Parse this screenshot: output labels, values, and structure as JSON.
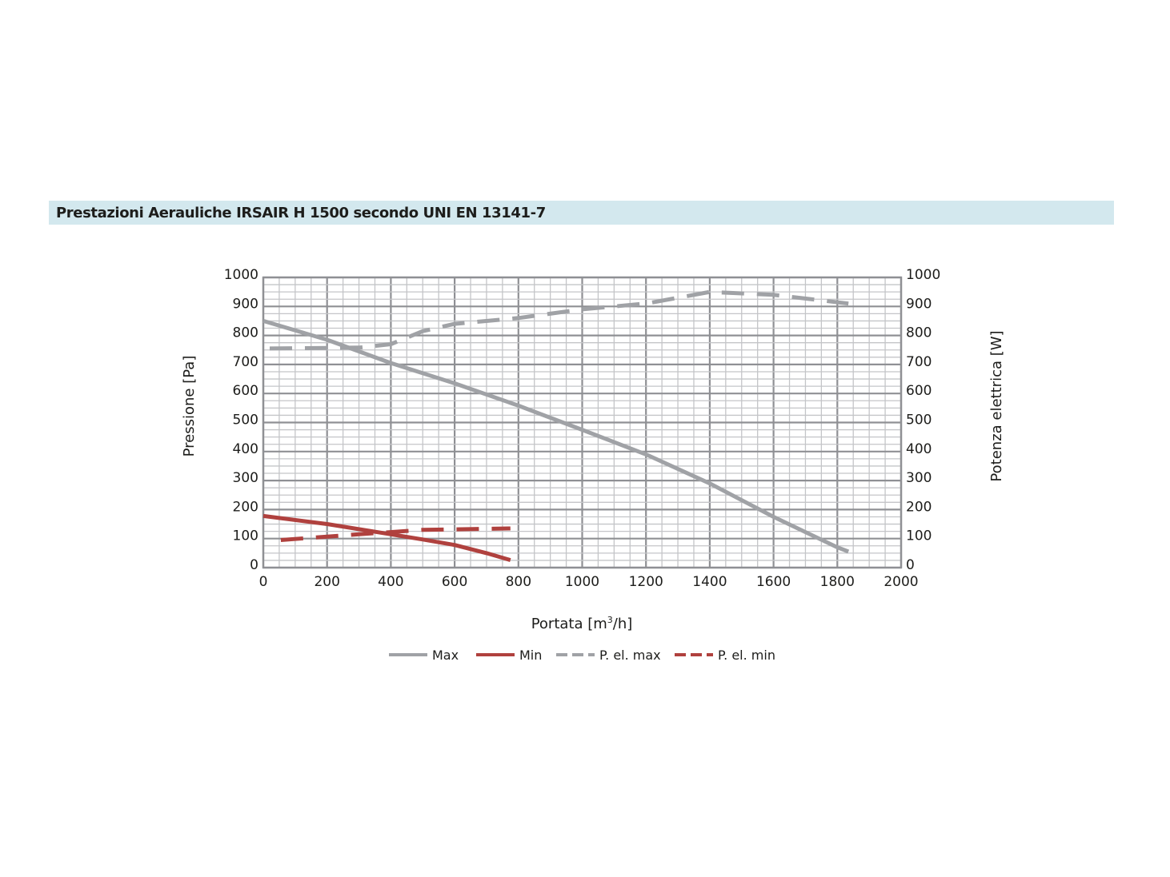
{
  "title": "Prestazioni Aerauliche IRSAIR H 1500 secondo UNI EN 13141-7",
  "chart_data": {
    "type": "line",
    "xlabel_base": "Portata [m",
    "xlabel_sup": "3",
    "xlabel_tail": "/h]",
    "ylabel_left": "Pressione [Pa]",
    "ylabel_right": "Potenza elettrica [W]",
    "xlim": [
      0,
      2000
    ],
    "ylim": [
      0,
      1000
    ],
    "x_ticks": [
      0,
      200,
      400,
      600,
      800,
      1000,
      1200,
      1400,
      1600,
      1800,
      2000
    ],
    "y_ticks": [
      0,
      100,
      200,
      300,
      400,
      500,
      600,
      700,
      800,
      900,
      1000
    ],
    "grid": true,
    "legend_position": "bottom-center",
    "series": [
      {
        "name": "Max",
        "axis": "left",
        "style": "solid",
        "color": "#a0a2a6",
        "x": [
          0,
          200,
          400,
          600,
          800,
          1000,
          1200,
          1400,
          1600,
          1800,
          1835
        ],
        "y": [
          850,
          785,
          705,
          635,
          558,
          475,
          390,
          290,
          175,
          70,
          55
        ]
      },
      {
        "name": "Min",
        "axis": "left",
        "style": "solid",
        "color": "#b0413e",
        "x": [
          0,
          200,
          400,
          500,
          600,
          700,
          775
        ],
        "y": [
          178,
          150,
          115,
          97,
          78,
          50,
          26
        ]
      },
      {
        "name": "P. el. max",
        "axis": "right",
        "style": "dashed",
        "color": "#a0a2a6",
        "x": [
          20,
          300,
          400,
          500,
          600,
          800,
          1000,
          1200,
          1400,
          1600,
          1835
        ],
        "y": [
          755,
          758,
          770,
          815,
          840,
          860,
          890,
          910,
          950,
          940,
          910
        ]
      },
      {
        "name": "P. el. min",
        "axis": "right",
        "style": "dashed",
        "color": "#b0413e",
        "x": [
          55,
          300,
          500,
          775
        ],
        "y": [
          95,
          115,
          130,
          135
        ]
      }
    ]
  }
}
